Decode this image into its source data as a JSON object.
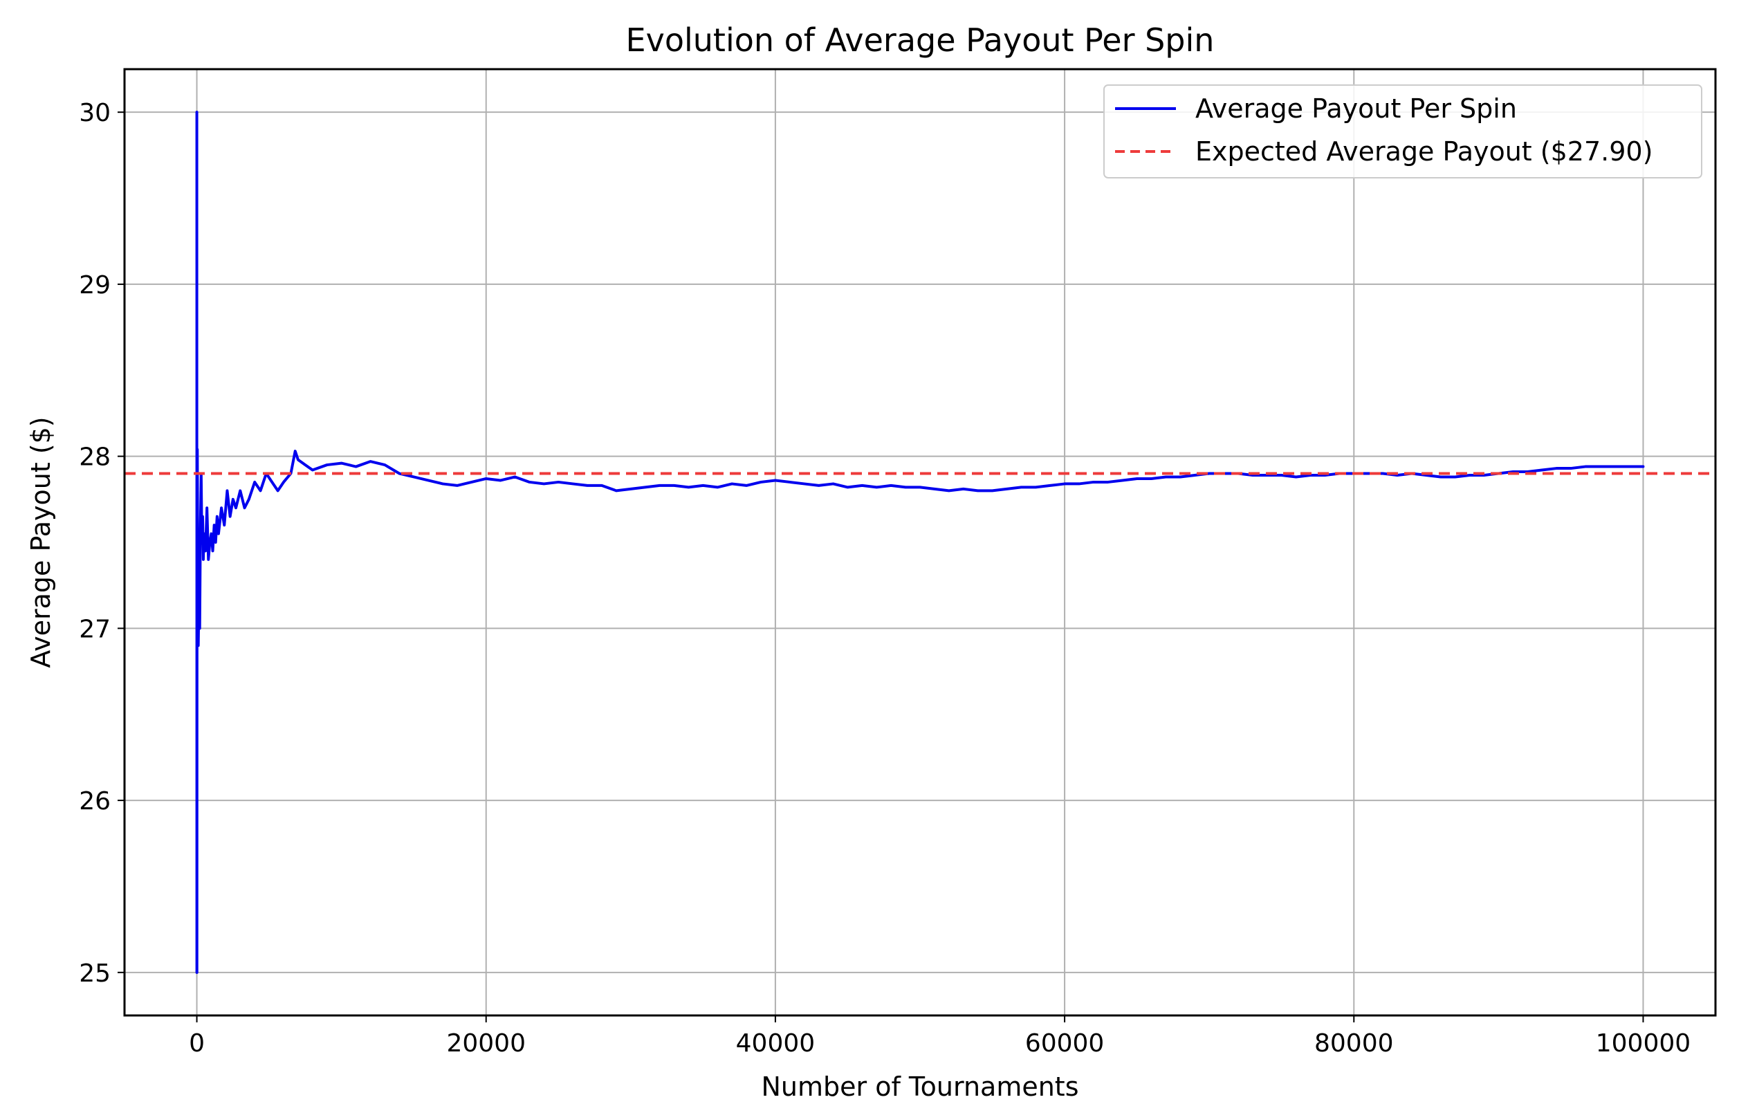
{
  "chart_data": {
    "type": "line",
    "title": "Evolution of Average Payout Per Spin",
    "xlabel": "Number of Tournaments",
    "ylabel": "Average Payout ($)",
    "xlim": [
      -5000,
      105000
    ],
    "ylim": [
      24.75,
      30.25
    ],
    "xticks": [
      0,
      20000,
      40000,
      60000,
      80000,
      100000
    ],
    "xtick_labels": [
      "0",
      "20000",
      "40000",
      "60000",
      "80000",
      "100000"
    ],
    "yticks": [
      25,
      26,
      27,
      28,
      29,
      30
    ],
    "ytick_labels": [
      "25",
      "26",
      "27",
      "28",
      "29",
      "30"
    ],
    "grid": true,
    "legend_position": "top-right",
    "series": [
      {
        "name": "Average Payout Per Spin",
        "color": "#0000ee",
        "style": "solid",
        "x": [
          1,
          2,
          3,
          5,
          8,
          12,
          20,
          35,
          60,
          100,
          150,
          200,
          250,
          300,
          350,
          400,
          450,
          500,
          600,
          700,
          800,
          900,
          1000,
          1100,
          1200,
          1300,
          1400,
          1500,
          1700,
          1900,
          2100,
          2300,
          2500,
          2700,
          3000,
          3300,
          3600,
          4000,
          4400,
          4800,
          5200,
          5600,
          6000,
          6500,
          6800,
          7000,
          7500,
          8000,
          9000,
          10000,
          11000,
          12000,
          13000,
          14000,
          15000,
          16000,
          17000,
          18000,
          19000,
          20000,
          21000,
          22000,
          23000,
          24000,
          25000,
          26000,
          27000,
          28000,
          29000,
          30000,
          31000,
          32000,
          33000,
          34000,
          35000,
          36000,
          37000,
          38000,
          39000,
          40000,
          41000,
          42000,
          43000,
          44000,
          45000,
          46000,
          47000,
          48000,
          49000,
          50000,
          51000,
          52000,
          53000,
          54000,
          55000,
          56000,
          57000,
          58000,
          59000,
          60000,
          61000,
          62000,
          63000,
          64000,
          65000,
          66000,
          67000,
          68000,
          69000,
          70000,
          71000,
          72000,
          73000,
          74000,
          75000,
          76000,
          77000,
          78000,
          79000,
          80000,
          81000,
          82000,
          83000,
          84000,
          85000,
          86000,
          87000,
          88000,
          89000,
          90000,
          91000,
          92000,
          93000,
          94000,
          95000,
          96000,
          97000,
          98000,
          99000,
          100000
        ],
        "values": [
          30.0,
          25.0,
          26.4,
          27.3,
          25.0,
          26.5,
          27.8,
          28.04,
          27.5,
          26.9,
          27.2,
          27.0,
          27.6,
          27.9,
          27.5,
          27.65,
          27.4,
          27.55,
          27.45,
          27.7,
          27.4,
          27.5,
          27.55,
          27.45,
          27.6,
          27.5,
          27.65,
          27.55,
          27.7,
          27.6,
          27.8,
          27.65,
          27.75,
          27.7,
          27.8,
          27.7,
          27.75,
          27.85,
          27.8,
          27.9,
          27.85,
          27.8,
          27.85,
          27.9,
          28.03,
          27.98,
          27.95,
          27.92,
          27.95,
          27.96,
          27.94,
          27.97,
          27.95,
          27.9,
          27.88,
          27.86,
          27.84,
          27.83,
          27.85,
          27.87,
          27.86,
          27.88,
          27.85,
          27.84,
          27.85,
          27.84,
          27.83,
          27.83,
          27.8,
          27.81,
          27.82,
          27.83,
          27.83,
          27.82,
          27.83,
          27.82,
          27.84,
          27.83,
          27.85,
          27.86,
          27.85,
          27.84,
          27.83,
          27.84,
          27.82,
          27.83,
          27.82,
          27.83,
          27.82,
          27.82,
          27.81,
          27.8,
          27.81,
          27.8,
          27.8,
          27.81,
          27.82,
          27.82,
          27.83,
          27.84,
          27.84,
          27.85,
          27.85,
          27.86,
          27.87,
          27.87,
          27.88,
          27.88,
          27.89,
          27.9,
          27.9,
          27.9,
          27.89,
          27.89,
          27.89,
          27.88,
          27.89,
          27.89,
          27.9,
          27.9,
          27.9,
          27.9,
          27.89,
          27.9,
          27.89,
          27.88,
          27.88,
          27.89,
          27.89,
          27.9,
          27.91,
          27.91,
          27.92,
          27.93,
          27.93,
          27.94,
          27.94,
          27.94,
          27.94,
          27.94
        ]
      },
      {
        "name": "Expected Average Payout ($27.90)",
        "color": "#ee3b3b",
        "style": "dashed",
        "x": [
          -5000,
          105000
        ],
        "values": [
          27.9,
          27.9
        ]
      }
    ]
  }
}
